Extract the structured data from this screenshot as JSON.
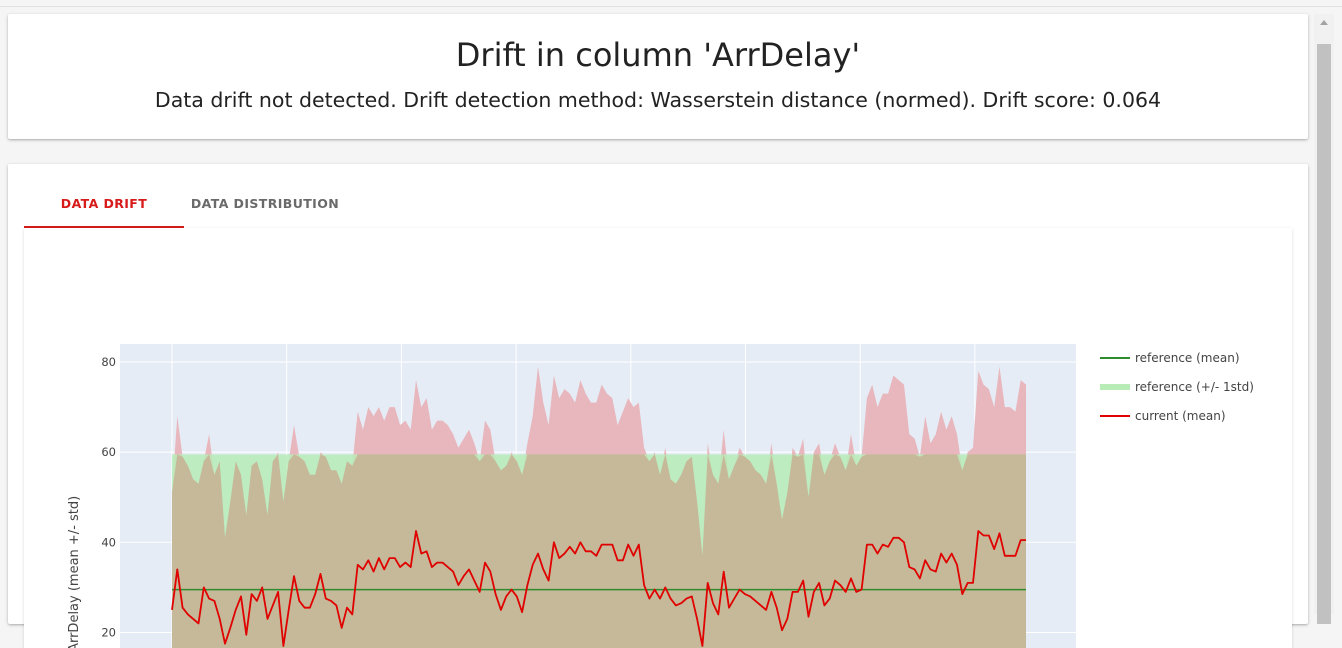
{
  "header": {
    "title": "Drift in column 'ArrDelay'",
    "subtitle": "Data drift not detected. Drift detection method: Wasserstein distance (normed). Drift score: 0.064"
  },
  "tabs": [
    {
      "label": "DATA DRIFT",
      "active": true
    },
    {
      "label": "DATA DISTRIBUTION",
      "active": false
    }
  ],
  "colors": {
    "accent": "#d71a1a",
    "reference_mean": "#2e8b2e",
    "reference_band": "#b7ecb7",
    "current_mean": "#e00000",
    "current_band": "#e8b7bd",
    "plot_bg": "#e5ecf6"
  },
  "chart_data": {
    "type": "line",
    "title": "",
    "xlabel": "",
    "ylabel": "ArrDelay (mean +/- std)",
    "y_ticks": [
      20,
      40,
      60,
      80
    ],
    "ylim": [
      13,
      84
    ],
    "grid": true,
    "legend_position": "right",
    "legend": [
      "reference (mean)",
      "reference (+/- 1std)",
      "current (mean)"
    ],
    "reference": {
      "mean": 29.5,
      "upper": 59.5
    },
    "current_mean": [
      25,
      34,
      25.5,
      24,
      23,
      22,
      30,
      27.5,
      27,
      23,
      17.5,
      21,
      25,
      28,
      19.5,
      28.5,
      27,
      30,
      23,
      26,
      29,
      17,
      25,
      32.5,
      27,
      25.5,
      25.5,
      28.5,
      33,
      27.5,
      27,
      26,
      21,
      25.5,
      24,
      35,
      34,
      36,
      33.5,
      36.5,
      34,
      36.5,
      36.5,
      34.5,
      35.5,
      34.5,
      42.5,
      37.5,
      38,
      34.5,
      35.5,
      35.5,
      34.5,
      33.5,
      30.5,
      32.5,
      34,
      31.5,
      29,
      35.5,
      33.5,
      28.5,
      25,
      28,
      29.5,
      28,
      24.5,
      30.5,
      35,
      37.5,
      34,
      31.5,
      40,
      36.5,
      37.5,
      39,
      37.5,
      40,
      38,
      38,
      37,
      39.5,
      39.5,
      39.5,
      36,
      36,
      39.5,
      37,
      39.5,
      30.5,
      27.5,
      29.5,
      27.5,
      30,
      27.5,
      26,
      26.5,
      27.5,
      28,
      23,
      17,
      31,
      26.5,
      24,
      33.5,
      25.5,
      27.5,
      29.5,
      28.5,
      28,
      27,
      26,
      25,
      29,
      25.5,
      20.5,
      23,
      29,
      29,
      31.5,
      23.5,
      29,
      31,
      26,
      27.5,
      31.5,
      30.5,
      29,
      32,
      29,
      29.5,
      39.5,
      39.5,
      37.5,
      39.5,
      39,
      41,
      41,
      40,
      34.5,
      34,
      32,
      36,
      34,
      33.5,
      37.5,
      35.5,
      37.5,
      35,
      28.5,
      31,
      31,
      42.5,
      41.5,
      41.5,
      38.5,
      42,
      37,
      37,
      37,
      40.5,
      40.5
    ],
    "current_upper": [
      51,
      68,
      59,
      57,
      54,
      53,
      58,
      64,
      55,
      58,
      41,
      49,
      58,
      55,
      46,
      57,
      58,
      54,
      46,
      58,
      60,
      49,
      58,
      66,
      59,
      58,
      55,
      55,
      60,
      59,
      56,
      56,
      53,
      58,
      57,
      69,
      65,
      70,
      68,
      70,
      67,
      70,
      70,
      66,
      67,
      65,
      76,
      70,
      72,
      65,
      67,
      67,
      66,
      64,
      61,
      63,
      65,
      62,
      58,
      67,
      65,
      58,
      56,
      57,
      60,
      58,
      55,
      62,
      68,
      79,
      71,
      66,
      77,
      72,
      74,
      73,
      71,
      76,
      73,
      71,
      71,
      75,
      73,
      72,
      66,
      69,
      72,
      70,
      71,
      61,
      58,
      60,
      55,
      61,
      54,
      53,
      55,
      58,
      59,
      49,
      37,
      62,
      55,
      53,
      65,
      54,
      57,
      61,
      59,
      58,
      56,
      55,
      53,
      62,
      53,
      45,
      51,
      61,
      59,
      63,
      50,
      60,
      62,
      55,
      58,
      62,
      59,
      56,
      64,
      57,
      59,
      72,
      75,
      70,
      73,
      73,
      77,
      76,
      75,
      64,
      63,
      59,
      68,
      62,
      64,
      69,
      65,
      68,
      64,
      56,
      60,
      61,
      78,
      75,
      74,
      70,
      79,
      70,
      70,
      69,
      76,
      75
    ]
  }
}
